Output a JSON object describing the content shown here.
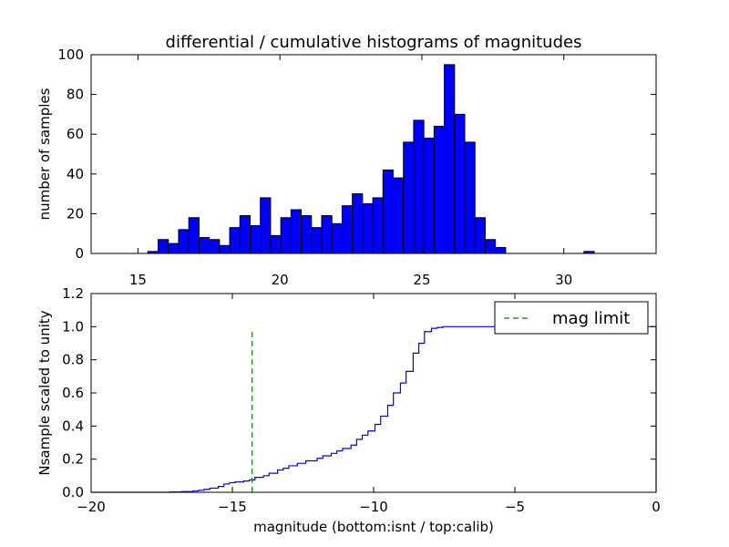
{
  "figure": {
    "xlabel": "magnitude (bottom:isnt / top:calib)"
  },
  "chart_data": [
    {
      "type": "bar",
      "title": "differential / cumulative histograms of magnitudes",
      "xlabel": "",
      "ylabel": "number of samples",
      "xlim": [
        13.35,
        33.25
      ],
      "ylim": [
        0,
        100
      ],
      "xticks": [
        15,
        20,
        25,
        30
      ],
      "yticks": [
        0,
        20,
        40,
        60,
        80,
        100
      ],
      "bar_color": "#0000ff",
      "bin_width": 0.36,
      "bins": [
        [
          15.35,
          1
        ],
        [
          15.71,
          7
        ],
        [
          16.07,
          5
        ],
        [
          16.43,
          12
        ],
        [
          16.79,
          18
        ],
        [
          17.15,
          8
        ],
        [
          17.51,
          7
        ],
        [
          17.87,
          4
        ],
        [
          18.23,
          13
        ],
        [
          18.59,
          19
        ],
        [
          18.95,
          14
        ],
        [
          19.31,
          28
        ],
        [
          19.67,
          9
        ],
        [
          20.03,
          18
        ],
        [
          20.39,
          22
        ],
        [
          20.75,
          19
        ],
        [
          21.11,
          13
        ],
        [
          21.47,
          19
        ],
        [
          21.83,
          15
        ],
        [
          22.19,
          24
        ],
        [
          22.55,
          30
        ],
        [
          22.91,
          25
        ],
        [
          23.27,
          28
        ],
        [
          23.63,
          42
        ],
        [
          23.99,
          38
        ],
        [
          24.35,
          56
        ],
        [
          24.71,
          67
        ],
        [
          25.07,
          58
        ],
        [
          25.43,
          64
        ],
        [
          25.79,
          95
        ],
        [
          26.15,
          70
        ],
        [
          26.51,
          56
        ],
        [
          26.87,
          18
        ],
        [
          27.23,
          7
        ],
        [
          27.59,
          3
        ],
        [
          30.71,
          1
        ]
      ]
    },
    {
      "type": "line",
      "title": "",
      "xlabel": "magnitude (bottom:isnt / top:calib)",
      "ylabel": "Nsample scaled to unity",
      "xlim": [
        -20,
        0
      ],
      "ylim": [
        0,
        1.2
      ],
      "xticks": [
        -20,
        -15,
        -10,
        -5,
        0
      ],
      "yticks": [
        0.0,
        0.2,
        0.4,
        0.6,
        0.8,
        1.0,
        1.2
      ],
      "legend": {
        "position": "top-right",
        "entries": [
          "mag limit"
        ]
      },
      "mag_limit": {
        "label": "mag limit",
        "x": -14.3,
        "y_range": [
          0,
          0.97
        ],
        "color": "#008000",
        "style": "dashed"
      },
      "series": [
        {
          "name": "cumulative",
          "color": "#0000ff",
          "drawstyle": "steps",
          "points": [
            [
              -20,
              0.0
            ],
            [
              -17.2,
              0.002
            ],
            [
              -16.8,
              0.004
            ],
            [
              -16.4,
              0.008
            ],
            [
              -16.2,
              0.012
            ],
            [
              -16.0,
              0.018
            ],
            [
              -15.8,
              0.025
            ],
            [
              -15.5,
              0.035
            ],
            [
              -15.3,
              0.05
            ],
            [
              -15.1,
              0.058
            ],
            [
              -14.9,
              0.063
            ],
            [
              -14.6,
              0.068
            ],
            [
              -14.4,
              0.075
            ],
            [
              -14.2,
              0.09
            ],
            [
              -13.9,
              0.1
            ],
            [
              -13.7,
              0.115
            ],
            [
              -13.4,
              0.135
            ],
            [
              -13.2,
              0.145
            ],
            [
              -13.0,
              0.16
            ],
            [
              -12.7,
              0.175
            ],
            [
              -12.4,
              0.19
            ],
            [
              -12.0,
              0.205
            ],
            [
              -11.8,
              0.22
            ],
            [
              -11.5,
              0.235
            ],
            [
              -11.3,
              0.25
            ],
            [
              -11.1,
              0.265
            ],
            [
              -10.8,
              0.285
            ],
            [
              -10.6,
              0.32
            ],
            [
              -10.4,
              0.345
            ],
            [
              -10.2,
              0.37
            ],
            [
              -9.95,
              0.41
            ],
            [
              -9.75,
              0.46
            ],
            [
              -9.5,
              0.525
            ],
            [
              -9.3,
              0.6
            ],
            [
              -9.05,
              0.66
            ],
            [
              -8.85,
              0.73
            ],
            [
              -8.6,
              0.84
            ],
            [
              -8.4,
              0.9
            ],
            [
              -8.2,
              0.97
            ],
            [
              -7.95,
              0.99
            ],
            [
              -7.75,
              0.995
            ],
            [
              -7.55,
              1.0
            ],
            [
              0,
              1.0
            ],
            [
              0,
              0.0
            ]
          ]
        }
      ]
    }
  ]
}
